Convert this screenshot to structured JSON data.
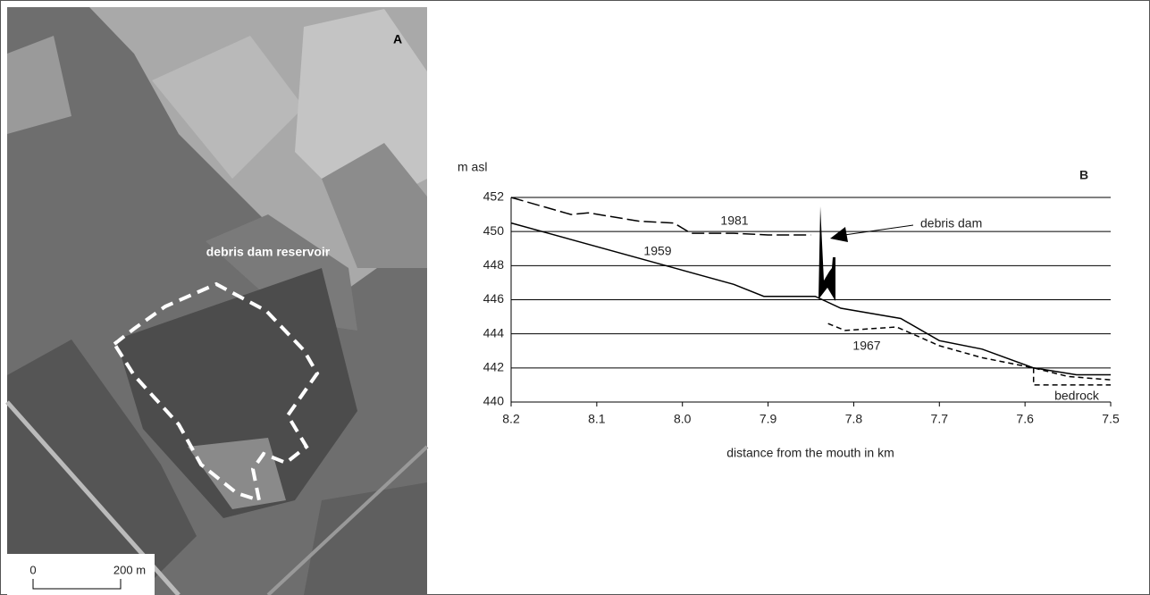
{
  "photo": {
    "panel_label": "A",
    "annotation": "debris dam reservoir",
    "scale_labels": [
      "0",
      "200 m"
    ]
  },
  "chart_data": {
    "type": "line",
    "panel_label": "B",
    "y_label": "m asl",
    "x_label": "distance from the mouth in km",
    "annotation": "debris dam",
    "xlim": [
      8.2,
      7.5
    ],
    "xticks": [
      8.2,
      8.1,
      {
        "value": 8,
        "label": "8.0"
      },
      7.9,
      7.8,
      7.7,
      7.6,
      7.5
    ],
    "ylim": [
      440,
      452
    ],
    "yticks": [
      440,
      442,
      444,
      446,
      448,
      450,
      452
    ],
    "grid": true,
    "series": [
      {
        "name": "1959",
        "color": "#000000",
        "style": "solid",
        "x": [
          8.2,
          7.94,
          7.905,
          7.845,
          7.815,
          7.745,
          7.7,
          7.65,
          7.59,
          7.54,
          7.5
        ],
        "values": [
          450.5,
          446.9,
          446.2,
          446.2,
          445.5,
          444.9,
          443.6,
          443.1,
          442.0,
          441.6,
          441.6
        ]
      },
      {
        "name": "1981",
        "color": "#000000",
        "style": "long-dash",
        "x": [
          8.2,
          8.13,
          8.11,
          8.05,
          8.01,
          7.99,
          7.94,
          7.9,
          7.85
        ],
        "values": [
          452,
          451.0,
          451.1,
          450.6,
          450.5,
          449.9,
          449.9,
          449.8,
          449.8
        ]
      },
      {
        "name": "1967",
        "color": "#000000",
        "style": "dash",
        "x": [
          7.83,
          7.81,
          7.75,
          7.7,
          7.65,
          7.59,
          7.55,
          7.5
        ],
        "values": [
          444.6,
          444.2,
          444.4,
          443.3,
          442.6,
          442.0,
          441.5,
          441.3
        ]
      },
      {
        "name": "bedrock",
        "color": "#000000",
        "style": "dash",
        "x": [
          7.59,
          7.59,
          7.5
        ],
        "values": [
          442.0,
          441.0,
          441.0
        ]
      }
    ]
  }
}
